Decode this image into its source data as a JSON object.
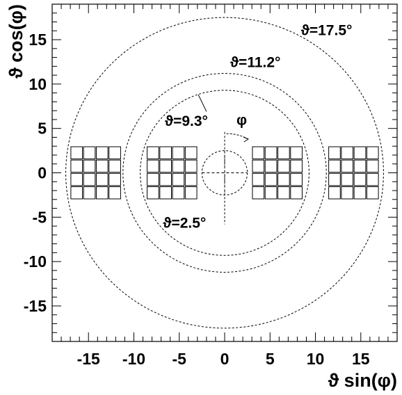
{
  "diagram": {
    "xlabel": "ϑ sin(φ)",
    "ylabel": "ϑ cos(φ)",
    "xlim": [
      -19,
      19
    ],
    "ylim": [
      -19,
      19
    ],
    "x_ticks": [
      "-15",
      "-10",
      "-5",
      "0",
      "5",
      "10",
      "15"
    ],
    "y_ticks": [
      "15",
      "10",
      "5",
      "0",
      "-5",
      "-10",
      "-15"
    ],
    "circles": [
      {
        "radius": 2.5,
        "label": "ϑ=2.5°"
      },
      {
        "radius": 9.3,
        "label": "ϑ=9.3°"
      },
      {
        "radius": 11.2,
        "label": "ϑ=11.2°"
      },
      {
        "radius": 17.5,
        "label": "ϑ=17.5°"
      }
    ],
    "phi_label": "φ",
    "detector_modules": [
      {
        "name": "far-left",
        "x_from": -17.0,
        "x_to": -11.4,
        "rows": 4,
        "cols": 4
      },
      {
        "name": "near-left",
        "x_from": -8.6,
        "x_to": -3.0,
        "rows": 4,
        "cols": 4
      },
      {
        "name": "near-right",
        "x_from": 3.0,
        "x_to": 8.6,
        "rows": 4,
        "cols": 4
      },
      {
        "name": "far-right",
        "x_from": 11.4,
        "x_to": 17.0,
        "rows": 4,
        "cols": 4
      }
    ],
    "module_y_range": [
      -3.0,
      3.0
    ]
  }
}
